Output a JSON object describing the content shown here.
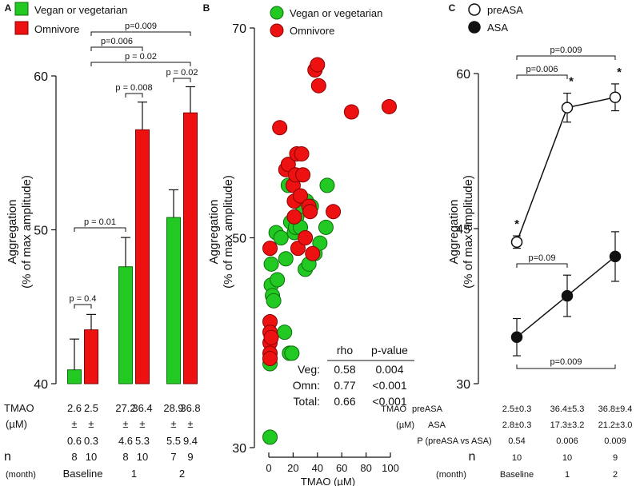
{
  "colors": {
    "veg": "#22c922",
    "omn": "#ee1111",
    "veg_edge": "#0c6e0c",
    "omn_edge": "#8a0000",
    "axis": "#111111"
  },
  "chart_data": [
    {
      "panel": "A",
      "type": "bar",
      "title": "",
      "ylabel": "Aggregation (% of max amplitude)",
      "ylabel_lines": [
        "Aggregation",
        "(% of max amplitude)"
      ],
      "ylim": [
        40,
        60
      ],
      "yticks": [
        40,
        50,
        60
      ],
      "groups": [
        "Baseline",
        "1",
        "2"
      ],
      "series": [
        {
          "name": "Vegan or vegetarian",
          "values": [
            40.9,
            47.6,
            50.8
          ],
          "errors": [
            2.0,
            1.9,
            1.8
          ]
        },
        {
          "name": "Omnivore",
          "values": [
            43.5,
            56.5,
            57.6
          ],
          "errors": [
            1.0,
            1.8,
            1.7
          ]
        }
      ],
      "legend": [
        "Vegan or vegetarian",
        "Omnivore"
      ],
      "legend_position": "top-left",
      "brackets": [
        {
          "label": "p = 0.4"
        },
        {
          "label": "p = 0.01"
        },
        {
          "label": "p = 0.008"
        },
        {
          "label": "p = 0.02"
        },
        {
          "label": "p = 0.02"
        },
        {
          "label": "p=0.006"
        },
        {
          "label": "p=0.009"
        }
      ],
      "table": {
        "tmao_label": "TMAO",
        "unit_label": "(µM)",
        "pm": "±",
        "n_label": "n",
        "month_label": "(month)",
        "tmao_means": [
          "2.6",
          "2.5",
          "27.2",
          "36.4",
          "28.9",
          "36.8"
        ],
        "tmao_sd": [
          "0.6",
          "0.3",
          "4.6",
          "5.3",
          "5.5",
          "9.4"
        ],
        "n": [
          "8",
          "10",
          "8",
          "10",
          "7",
          "9"
        ],
        "months": [
          "Baseline",
          "1",
          "2"
        ]
      }
    },
    {
      "panel": "B",
      "type": "scatter",
      "title": "",
      "xlabel": "TMAO (µM)",
      "ylabel": "Aggregation (% of max amplitude)",
      "ylabel_lines": [
        "Aggregation",
        "(% of max amplitude)"
      ],
      "xlim": [
        0,
        100
      ],
      "ylim": [
        30,
        70
      ],
      "xticks": [
        0,
        20,
        40,
        60,
        80,
        100
      ],
      "yticks": [
        30,
        50,
        70
      ],
      "legend": [
        "Vegan or vegetarian",
        "Omnivore"
      ],
      "legend_position": "top",
      "series": [
        {
          "name": "Vegan or vegetarian",
          "points": [
            [
              1,
              31.0
            ],
            [
              1,
              38.0
            ],
            [
              1,
              38.5
            ],
            [
              2,
              47.5
            ],
            [
              2,
              45.5
            ],
            [
              3,
              44.5
            ],
            [
              4,
              44.0
            ],
            [
              6,
              50.5
            ],
            [
              7,
              46.0
            ],
            [
              10,
              50.0
            ],
            [
              13,
              41.0
            ],
            [
              14,
              48.0
            ],
            [
              16,
              55.0
            ],
            [
              17,
              39.0
            ],
            [
              18,
              51.5
            ],
            [
              19,
              39.0
            ],
            [
              21,
              50.5
            ],
            [
              22,
              51.0
            ],
            [
              23,
              52.0
            ],
            [
              26,
              51.0
            ],
            [
              28,
              53.0
            ],
            [
              30,
              47.0
            ],
            [
              31,
              53.5
            ],
            [
              33,
              47.5
            ],
            [
              35,
              53.0
            ],
            [
              38,
              48.5
            ],
            [
              42,
              49.5
            ],
            [
              47,
              51.0
            ],
            [
              48,
              55.0
            ]
          ]
        },
        {
          "name": "Omnivore",
          "points": [
            [
              1,
              49.0
            ],
            [
              1,
              42.0
            ],
            [
              1,
              41.0
            ],
            [
              1,
              40.0
            ],
            [
              1,
              39.0
            ],
            [
              1,
              38.5
            ],
            [
              2,
              40.5
            ],
            [
              9,
              60.5
            ],
            [
              14,
              56.5
            ],
            [
              16,
              57.0
            ],
            [
              20,
              55.0
            ],
            [
              21,
              52.0
            ],
            [
              21,
              53.5
            ],
            [
              22,
              56.0
            ],
            [
              23,
              58.0
            ],
            [
              24,
              49.0
            ],
            [
              26,
              54.0
            ],
            [
              27,
              58.0
            ],
            [
              28,
              56.0
            ],
            [
              30,
              50.0
            ],
            [
              33,
              53.0
            ],
            [
              34,
              52.5
            ],
            [
              36,
              48.5
            ],
            [
              38,
              66.0
            ],
            [
              40,
              66.5
            ],
            [
              41,
              64.5
            ],
            [
              53,
              52.5
            ],
            [
              68,
              62.0
            ],
            [
              99,
              62.5
            ]
          ]
        }
      ],
      "stats": {
        "headers": [
          "rho",
          "p-value"
        ],
        "rows": [
          {
            "label": "Veg:",
            "rho": "0.58",
            "p": "0.004"
          },
          {
            "label": "Omn:",
            "rho": "0.77",
            "p": "<0.001"
          },
          {
            "label": "Total:",
            "rho": "0.66",
            "p": "<0.001"
          }
        ]
      }
    },
    {
      "panel": "C",
      "type": "line",
      "title": "",
      "ylabel": "Aggregation (% of max amplitude)",
      "ylabel_lines": [
        "Aggregation",
        "(% of max amplitude)"
      ],
      "ylim": [
        30,
        60
      ],
      "yticks": [
        30,
        45,
        60
      ],
      "categories": [
        "Baseline",
        "1",
        "2"
      ],
      "legend": [
        "preASA",
        "ASA"
      ],
      "legend_position": "top-left",
      "series": [
        {
          "name": "preASA",
          "values": [
            43.7,
            56.7,
            57.7
          ],
          "errors": [
            0.6,
            1.4,
            1.3
          ],
          "asterisk": [
            "*",
            "*",
            "*"
          ]
        },
        {
          "name": "ASA",
          "values": [
            34.5,
            38.5,
            42.3
          ],
          "errors": [
            1.8,
            2.0,
            2.4
          ]
        }
      ],
      "brackets": [
        {
          "label": "p=0.009"
        },
        {
          "label": "p=0.006"
        },
        {
          "label": "p=0.09"
        },
        {
          "label": "p=0.009"
        }
      ],
      "table": {
        "tmao_label": "TMAO",
        "unit_label": "(µM)",
        "pre_label": "preASA",
        "asa_label": "ASA",
        "p_label": "P (preASA vs ASA)",
        "n_label": "n",
        "month_label": "(month)",
        "pre_values": [
          "2.5±0.3",
          "36.4±5.3",
          "36.8±9.4"
        ],
        "asa_values": [
          "2.8±0.3",
          "17.3±3.2",
          "21.2±3.0"
        ],
        "p_values": [
          "0.54",
          "0.006",
          "0.009"
        ],
        "n": [
          "10",
          "10",
          "9"
        ],
        "months": [
          "Baseline",
          "1",
          "2"
        ]
      }
    }
  ]
}
